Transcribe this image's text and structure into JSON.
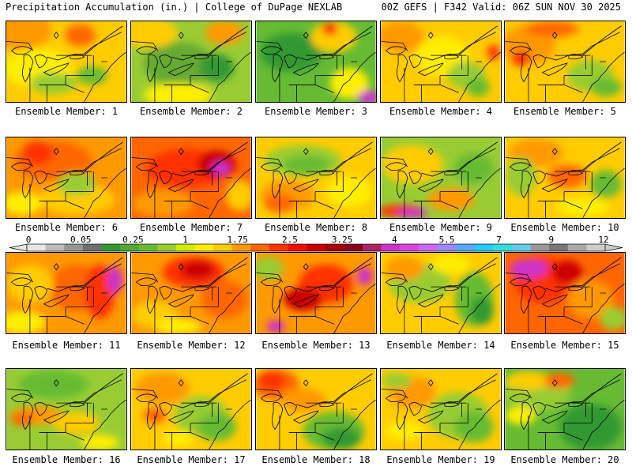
{
  "header": {
    "title_left": "Precipitation Accumulation (in.) | College of DuPage NEXLAB",
    "title_right": "00Z GEFS | F342 Valid: 06Z SUN NOV 30 2025"
  },
  "caption_prefix": "Ensemble Member:",
  "members": [
    {
      "id": 1,
      "caption": "Ensemble Member: 1",
      "base": "#ffcc00",
      "blobs": [
        [
          "#ff9900",
          18,
          12,
          40,
          25
        ],
        [
          "#ff6600",
          95,
          18,
          20,
          14
        ],
        [
          "#ffee00",
          40,
          60,
          45,
          25
        ],
        [
          "#99cc33",
          60,
          80,
          30,
          14
        ],
        [
          "#66bb33",
          110,
          70,
          20,
          12
        ]
      ]
    },
    {
      "id": 2,
      "caption": "Ensemble Member: 2",
      "base": "#99cc33",
      "blobs": [
        [
          "#66aa33",
          60,
          55,
          45,
          28
        ],
        [
          "#ffcc00",
          20,
          15,
          40,
          20
        ],
        [
          "#ff9900",
          120,
          15,
          25,
          15
        ],
        [
          "#339933",
          110,
          60,
          22,
          18
        ],
        [
          "#ffee00",
          60,
          95,
          45,
          15
        ]
      ]
    },
    {
      "id": 3,
      "caption": "Ensemble Member: 3",
      "base": "#66bb33",
      "blobs": [
        [
          "#339933",
          45,
          40,
          40,
          25
        ],
        [
          "#ffcc00",
          100,
          20,
          30,
          20
        ],
        [
          "#ffee00",
          120,
          80,
          25,
          20
        ],
        [
          "#ff0000",
          95,
          10,
          10,
          8
        ],
        [
          "#cc33cc",
          145,
          98,
          14,
          9
        ]
      ]
    },
    {
      "id": 4,
      "caption": "Ensemble Member: 4",
      "base": "#ffcc00",
      "blobs": [
        [
          "#ff9900",
          25,
          20,
          30,
          20
        ],
        [
          "#ffee00",
          80,
          45,
          35,
          25
        ],
        [
          "#99cc33",
          110,
          70,
          25,
          18
        ],
        [
          "#66bb33",
          125,
          85,
          15,
          12
        ],
        [
          "#ff3300",
          145,
          40,
          8,
          10
        ]
      ]
    },
    {
      "id": 5,
      "caption": "Ensemble Member: 5",
      "base": "#ffcc00",
      "blobs": [
        [
          "#ff9900",
          30,
          30,
          35,
          25
        ],
        [
          "#ff6600",
          60,
          10,
          35,
          10
        ],
        [
          "#ff3300",
          20,
          48,
          12,
          10
        ],
        [
          "#99cc33",
          110,
          70,
          30,
          20
        ],
        [
          "#66bb33",
          130,
          85,
          20,
          12
        ]
      ]
    },
    {
      "id": 6,
      "caption": "Ensemble Member: 6",
      "base": "#ff9900",
      "blobs": [
        [
          "#ff6600",
          60,
          30,
          50,
          25
        ],
        [
          "#ff3300",
          40,
          20,
          20,
          15
        ],
        [
          "#ffcc00",
          90,
          80,
          50,
          20
        ],
        [
          "#99cc33",
          90,
          60,
          25,
          15
        ],
        [
          "#ffee00",
          20,
          85,
          25,
          15
        ]
      ]
    },
    {
      "id": 7,
      "caption": "Ensemble Member: 7",
      "base": "#ff6600",
      "blobs": [
        [
          "#ff3300",
          70,
          40,
          50,
          25
        ],
        [
          "#cc0000",
          110,
          35,
          25,
          18
        ],
        [
          "#cc33cc",
          115,
          40,
          12,
          9
        ],
        [
          "#ff9900",
          40,
          85,
          40,
          18
        ],
        [
          "#ffcc00",
          140,
          75,
          18,
          20
        ]
      ]
    },
    {
      "id": 8,
      "caption": "Ensemble Member: 8",
      "base": "#ffcc00",
      "blobs": [
        [
          "#99cc33",
          60,
          30,
          50,
          20
        ],
        [
          "#66bb33",
          65,
          35,
          30,
          12
        ],
        [
          "#ff9900",
          40,
          75,
          35,
          20
        ],
        [
          "#ff6600",
          30,
          85,
          20,
          12
        ],
        [
          "#ffee00",
          120,
          70,
          30,
          20
        ]
      ]
    },
    {
      "id": 9,
      "caption": "Ensemble Member: 9",
      "base": "#99cc33",
      "blobs": [
        [
          "#ffcc00",
          40,
          35,
          40,
          25
        ],
        [
          "#ff9900",
          90,
          80,
          30,
          15
        ],
        [
          "#66bb33",
          120,
          40,
          25,
          20
        ],
        [
          "#ff3300",
          25,
          95,
          30,
          8
        ],
        [
          "#cc33cc",
          40,
          98,
          20,
          6
        ]
      ]
    },
    {
      "id": 10,
      "caption": "Ensemble Member: 10",
      "base": "#ffcc00",
      "blobs": [
        [
          "#ff9900",
          40,
          20,
          35,
          18
        ],
        [
          "#99cc33",
          20,
          50,
          20,
          25
        ],
        [
          "#ff6600",
          80,
          50,
          25,
          15
        ],
        [
          "#66bb33",
          130,
          60,
          20,
          18
        ],
        [
          "#ffee00",
          100,
          90,
          35,
          12
        ]
      ]
    },
    {
      "id": 11,
      "caption": "Ensemble Member: 11",
      "base": "#ff9900",
      "blobs": [
        [
          "#ff6600",
          90,
          45,
          35,
          30
        ],
        [
          "#ff3300",
          120,
          50,
          20,
          35
        ],
        [
          "#cc33cc",
          140,
          35,
          10,
          18
        ],
        [
          "#ffcc00",
          30,
          40,
          30,
          25
        ],
        [
          "#ffee00",
          20,
          90,
          30,
          15
        ]
      ]
    },
    {
      "id": 12,
      "caption": "Ensemble Member: 12",
      "base": "#ff9900",
      "blobs": [
        [
          "#ff3300",
          80,
          25,
          40,
          20
        ],
        [
          "#cc0000",
          85,
          22,
          22,
          12
        ],
        [
          "#ff6600",
          120,
          60,
          30,
          25
        ],
        [
          "#ffcc00",
          30,
          80,
          30,
          18
        ],
        [
          "#ffee00",
          60,
          95,
          30,
          10
        ]
      ]
    },
    {
      "id": 13,
      "caption": "Ensemble Member: 13",
      "base": "#ff9900",
      "blobs": [
        [
          "#ff3300",
          90,
          40,
          35,
          25
        ],
        [
          "#cc0000",
          60,
          60,
          25,
          15
        ],
        [
          "#99cc33",
          15,
          20,
          20,
          15
        ],
        [
          "#cc33cc",
          140,
          30,
          10,
          12
        ],
        [
          "#cc33cc",
          25,
          95,
          12,
          8
        ]
      ]
    },
    {
      "id": 14,
      "caption": "Ensemble Member: 14",
      "base": "#ffcc00",
      "blobs": [
        [
          "#99cc33",
          50,
          40,
          40,
          25
        ],
        [
          "#66bb33",
          120,
          60,
          25,
          35
        ],
        [
          "#339933",
          130,
          75,
          15,
          18
        ],
        [
          "#ff9900",
          30,
          20,
          25,
          15
        ],
        [
          "#ffee00",
          90,
          15,
          25,
          12
        ]
      ]
    },
    {
      "id": 15,
      "caption": "Ensemble Member: 15",
      "base": "#ff6600",
      "blobs": [
        [
          "#ff3300",
          50,
          35,
          40,
          30
        ],
        [
          "#cc33cc",
          30,
          20,
          25,
          12
        ],
        [
          "#cc0000",
          80,
          25,
          20,
          15
        ],
        [
          "#ff9900",
          110,
          60,
          30,
          25
        ],
        [
          "#99cc33",
          140,
          85,
          18,
          15
        ]
      ]
    },
    {
      "id": 16,
      "caption": "Ensemble Member: 16",
      "base": "#99cc33",
      "blobs": [
        [
          "#66bb33",
          60,
          20,
          45,
          18
        ],
        [
          "#ff9900",
          40,
          60,
          35,
          12
        ],
        [
          "#ffcc00",
          90,
          70,
          30,
          15
        ],
        [
          "#ff6600",
          20,
          65,
          15,
          8
        ],
        [
          "#ffee00",
          120,
          95,
          25,
          10
        ]
      ]
    },
    {
      "id": 17,
      "caption": "Ensemble Member: 17",
      "base": "#ffcc00",
      "blobs": [
        [
          "#ff9900",
          40,
          25,
          35,
          20
        ],
        [
          "#99cc33",
          90,
          60,
          35,
          25
        ],
        [
          "#66bb33",
          110,
          75,
          25,
          18
        ],
        [
          "#ff6600",
          30,
          60,
          15,
          10
        ],
        [
          "#ffee00",
          60,
          90,
          20,
          10
        ]
      ]
    },
    {
      "id": 18,
      "caption": "Ensemble Member: 18",
      "base": "#ffcc00",
      "blobs": [
        [
          "#ff6600",
          25,
          20,
          30,
          20
        ],
        [
          "#ff3300",
          20,
          15,
          18,
          12
        ],
        [
          "#66bb33",
          100,
          80,
          40,
          25
        ],
        [
          "#339933",
          110,
          90,
          25,
          14
        ],
        [
          "#ff9900",
          60,
          40,
          30,
          15
        ]
      ]
    },
    {
      "id": 19,
      "caption": "Ensemble Member: 19",
      "base": "#ffcc00",
      "blobs": [
        [
          "#99cc33",
          100,
          60,
          40,
          30
        ],
        [
          "#66bb33",
          120,
          75,
          25,
          20
        ],
        [
          "#ff9900",
          40,
          30,
          30,
          20
        ],
        [
          "#ffee00",
          30,
          80,
          25,
          12
        ],
        [
          "#99cc33",
          20,
          15,
          20,
          10
        ]
      ]
    },
    {
      "id": 20,
      "caption": "Ensemble Member: 20",
      "base": "#66bb33",
      "blobs": [
        [
          "#99cc33",
          40,
          30,
          45,
          25
        ],
        [
          "#ffcc00",
          30,
          15,
          30,
          12
        ],
        [
          "#ff6600",
          70,
          15,
          20,
          10
        ],
        [
          "#339933",
          110,
          75,
          40,
          30
        ],
        [
          "#ffee00",
          20,
          60,
          20,
          12
        ]
      ]
    }
  ],
  "colorbar": {
    "labels": [
      "0",
      "0.05",
      "0.25",
      "1",
      "1.75",
      "2.5",
      "3.25",
      "4",
      "5.5",
      "7",
      "9",
      "12"
    ],
    "colors": [
      "#e6e6e6",
      "#bdbdbd",
      "#969696",
      "#6e6e6e",
      "#339933",
      "#4fa832",
      "#66bb33",
      "#99cc33",
      "#ccee00",
      "#ffee00",
      "#ffcc00",
      "#ff9900",
      "#ff6600",
      "#ff3300",
      "#ee1100",
      "#cc0000",
      "#aa0000",
      "#880022",
      "#aa2266",
      "#cc33cc",
      "#dd44dd",
      "#cc66ff",
      "#9988ff",
      "#55aaff",
      "#22ccff",
      "#33dddd",
      "#66ccee",
      "#999999",
      "#777777",
      "#aaaaaa",
      "#cccccc"
    ]
  }
}
